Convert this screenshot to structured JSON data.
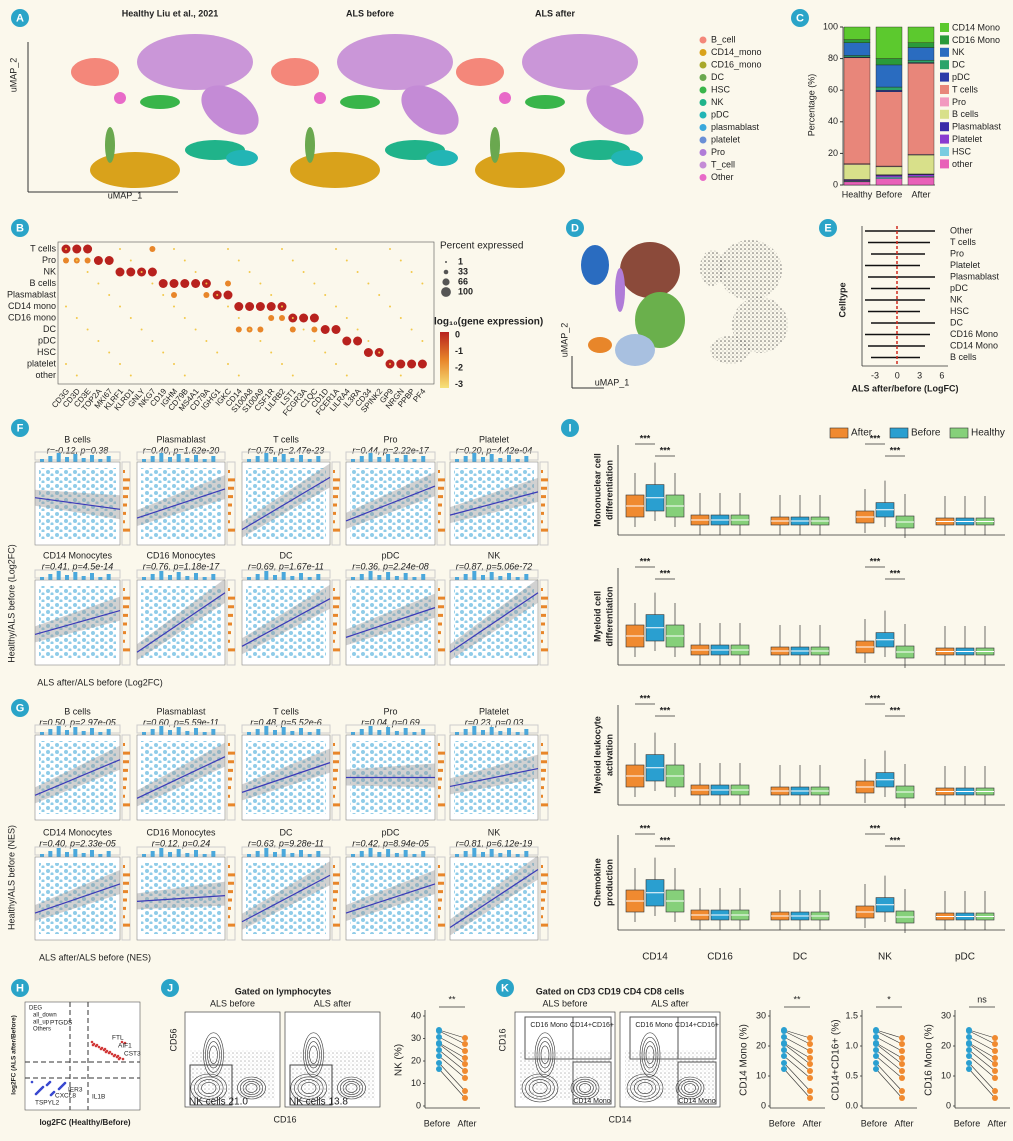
{
  "panel_a": {
    "letter": "A",
    "titles": [
      "Healthy Liu et al., 2021",
      "ALS before",
      "ALS after"
    ],
    "y_axis": "uMAP_2",
    "x_axis": "uMAP_1",
    "legend": [
      {
        "name": "B_cell",
        "color": "#f4877a"
      },
      {
        "name": "CD14_mono",
        "color": "#d9a21b"
      },
      {
        "name": "CD16_mono",
        "color": "#a8a82a"
      },
      {
        "name": "DC",
        "color": "#6aa84f"
      },
      {
        "name": "HSC",
        "color": "#39b54a"
      },
      {
        "name": "NK",
        "color": "#20b38a"
      },
      {
        "name": "pDC",
        "color": "#22b5b5"
      },
      {
        "name": "plasmablast",
        "color": "#3aa8dc"
      },
      {
        "name": "platelet",
        "color": "#6b8fd6"
      },
      {
        "name": "Pro",
        "color": "#b07cd8"
      },
      {
        "name": "T_cell",
        "color": "#c48bd6"
      },
      {
        "name": "Other",
        "color": "#e86ac8"
      }
    ]
  },
  "panel_b": {
    "letter": "B",
    "rows": [
      "T cells",
      "Pro",
      "NK",
      "B cells",
      "Plasmablast",
      "CD14 mono",
      "CD16 mono",
      "DC",
      "pDC",
      "HSC",
      "platelet",
      "other"
    ],
    "genes": [
      "CD3G",
      "CD3D",
      "CD3E",
      "TOP2A",
      "MKI67",
      "KLRF1",
      "KLRD1",
      "GNLY",
      "NKG7",
      "CD19",
      "IGHM",
      "CD79B",
      "MS4A1",
      "CD79A",
      "IGHG1",
      "IGKC",
      "CD14",
      "S100A8",
      "S100A9",
      "CSF1R",
      "LILRB2",
      "LST1",
      "FCGR3A",
      "C1QC",
      "CD1D",
      "FCER1A",
      "LILRA4",
      "IL3RA",
      "CD34",
      "SPINK2",
      "GP9",
      "NRGN",
      "PPBP",
      "PF4"
    ],
    "size_title": "Percent expressed",
    "sizes": [
      "1",
      "33",
      "66",
      "100"
    ],
    "color_title": "log₁₀(gene expression)",
    "color_ticks": [
      "0",
      "-1",
      "-2",
      "-3"
    ]
  },
  "panel_c": {
    "letter": "C",
    "y_label": "Percentage (%)",
    "ylim": [
      0,
      100
    ],
    "yticks": [
      0,
      20,
      40,
      60,
      80,
      100
    ],
    "categories": [
      "Healthy",
      "Before",
      "After"
    ],
    "series": [
      {
        "name": "CD14 Mono",
        "color": "#5cc92e",
        "values": [
          8,
          20,
          10
        ]
      },
      {
        "name": "CD16 Mono",
        "color": "#2a9a3a",
        "values": [
          2,
          4,
          3
        ]
      },
      {
        "name": "NK",
        "color": "#2a6cc0",
        "values": [
          8,
          14,
          8
        ]
      },
      {
        "name": "DC",
        "color": "#2aa46a",
        "values": [
          1,
          2,
          1.5
        ]
      },
      {
        "name": "pDC",
        "color": "#2a3aa8",
        "values": [
          0.5,
          1,
          0.5
        ]
      },
      {
        "name": "T cells",
        "color": "#e8867a",
        "values": [
          67,
          47,
          57.5
        ]
      },
      {
        "name": "Pro",
        "color": "#f29ac0",
        "values": [
          0.5,
          0.5,
          0.5
        ]
      },
      {
        "name": "B cells",
        "color": "#d8e08a",
        "values": [
          9.5,
          5,
          12
        ]
      },
      {
        "name": "Plasmablast",
        "color": "#3a2aa8",
        "values": [
          0.5,
          0.5,
          0.5
        ]
      },
      {
        "name": "Platelet",
        "color": "#8a3ad0",
        "values": [
          0.5,
          1,
          1
        ]
      },
      {
        "name": "HSC",
        "color": "#7acce0",
        "values": [
          0.5,
          1,
          0.5
        ]
      },
      {
        "name": "other",
        "color": "#e860b8",
        "values": [
          2,
          4,
          5
        ]
      }
    ]
  },
  "panel_d": {
    "letter": "D",
    "y_axis": "uMAP_2",
    "x_axis": "uMAP_1"
  },
  "panel_e": {
    "letter": "E",
    "rows": [
      "Other",
      "T cells",
      "Pro",
      "Platelet",
      "Plasmablast",
      "pDC",
      "NK",
      "HSC",
      "DC",
      "CD16 Mono",
      "CD14 Mono",
      "B cells"
    ],
    "y_label": "Celltype",
    "x_label": "ALS after/before (LogFC)",
    "xticks": [
      "-3",
      "0",
      "3",
      "6"
    ]
  },
  "panel_f": {
    "letter": "F",
    "y_label": "Healthy/ALS before (Log2FC)",
    "x_label": "ALS after/ALS before (Log2FC)",
    "plots": [
      {
        "title": "B cells",
        "stats": "r=-0.12, p=0.38"
      },
      {
        "title": "Plasmablast",
        "stats": "r=0.40, p=1.62e-20"
      },
      {
        "title": "T cells",
        "stats": "r=0.75, p=2.47e-23"
      },
      {
        "title": "Pro",
        "stats": "r=0.44, p=2.22e-17"
      },
      {
        "title": "Platelet",
        "stats": "r=0.20, p=4.42e-04"
      },
      {
        "title": "CD14 Monocytes",
        "stats": "r=0.41, p=4.5e-14"
      },
      {
        "title": "CD16 Monocytes",
        "stats": "r=0.76, p=1.18e-17"
      },
      {
        "title": "DC",
        "stats": "r=0.69, p=1.67e-11"
      },
      {
        "title": "pDC",
        "stats": "r=0.36, p=2.24e-08"
      },
      {
        "title": "NK",
        "stats": "r=0.87, p=5.06e-72"
      }
    ]
  },
  "panel_g": {
    "letter": "G",
    "y_label": "Healthy/ALS before (NES)",
    "x_label": "ALS after/ALS before (NES)",
    "plots": [
      {
        "title": "B cells",
        "stats": "r=0.50, p=2.97e-05"
      },
      {
        "title": "Plasmablast",
        "stats": "r=0.60, p=5.59e-11"
      },
      {
        "title": "T cells",
        "stats": "r=0.48, p=5.52e-6"
      },
      {
        "title": "Pro",
        "stats": "r=0.04, p=0.69"
      },
      {
        "title": "Platelet",
        "stats": "r=0.23, p=0.03"
      },
      {
        "title": "CD14 Monocytes",
        "stats": "r=0.40, p=2.33e-05"
      },
      {
        "title": "CD16 Monocytes",
        "stats": "r=0.12, p=0.24"
      },
      {
        "title": "DC",
        "stats": "r=0.63, p=9.28e-11"
      },
      {
        "title": "pDC",
        "stats": "r=0.42, p=8.94e-05"
      },
      {
        "title": "NK",
        "stats": "r=0.81, p=6.12e-19"
      }
    ]
  },
  "panel_i": {
    "letter": "I",
    "legend": [
      "After",
      "Before",
      "Healthy"
    ],
    "rows": [
      [
        "Mononuclear cell",
        "differentiation"
      ],
      [
        "Myeloid cell",
        "differentiation"
      ],
      [
        "Myeloid leukocyte",
        "activation"
      ],
      [
        "Chemokine",
        "production"
      ]
    ],
    "categories": [
      "CD14",
      "CD16",
      "DC",
      "NK",
      "pDC"
    ],
    "significance": "***"
  },
  "panel_h": {
    "letter": "H",
    "legend": [
      "DEG",
      "all_down",
      "all_up",
      "Others"
    ],
    "genes": [
      "PTGDS",
      "FTL",
      "AIF1",
      "CST3",
      "TSPYL2",
      "CXCL8",
      "IER3",
      "IL1B"
    ],
    "x_axis": "log2FC (Healthy/Before)",
    "y_axis": "log2FC (ALS after/Before)"
  },
  "panel_j": {
    "letter": "J",
    "title": "Gated on lymphocytes",
    "plots": [
      "ALS before",
      "ALS after"
    ],
    "y_axis": "CD56",
    "x_axis": "CD16",
    "gates": [
      "NK cells 21.0",
      "NK cells 13.8"
    ],
    "summary": {
      "y_label": "NK (%)",
      "yticks": [
        "0",
        "10",
        "20",
        "30",
        "40"
      ],
      "significance": "**",
      "categories": [
        "Before",
        "After"
      ]
    }
  },
  "panel_k": {
    "letter": "K",
    "title": "Gated on CD3 CD19 CD4 CD8 cells",
    "plots": [
      "ALS before",
      "ALS after"
    ],
    "y_axis": "CD16",
    "x_axis": "CD14",
    "gates": [
      "CD16 Mono",
      "CD14+CD16+",
      "CD14 Mono"
    ],
    "summaries": [
      {
        "y_label": "CD14 Mono (%)",
        "yticks": [
          "0",
          "10",
          "20",
          "30"
        ],
        "significance": "**",
        "categories": [
          "Before",
          "After"
        ]
      },
      {
        "y_label": "CD14+CD16+ (%)",
        "yticks": [
          "0.0",
          "0.5",
          "1.0",
          "1.5"
        ],
        "significance": "*",
        "categories": [
          "Before",
          "After"
        ]
      },
      {
        "y_label": "CD16 Mono (%)",
        "yticks": [
          "0",
          "10",
          "20",
          "30"
        ],
        "significance": "ns",
        "categories": [
          "Before",
          "After"
        ]
      }
    ]
  }
}
